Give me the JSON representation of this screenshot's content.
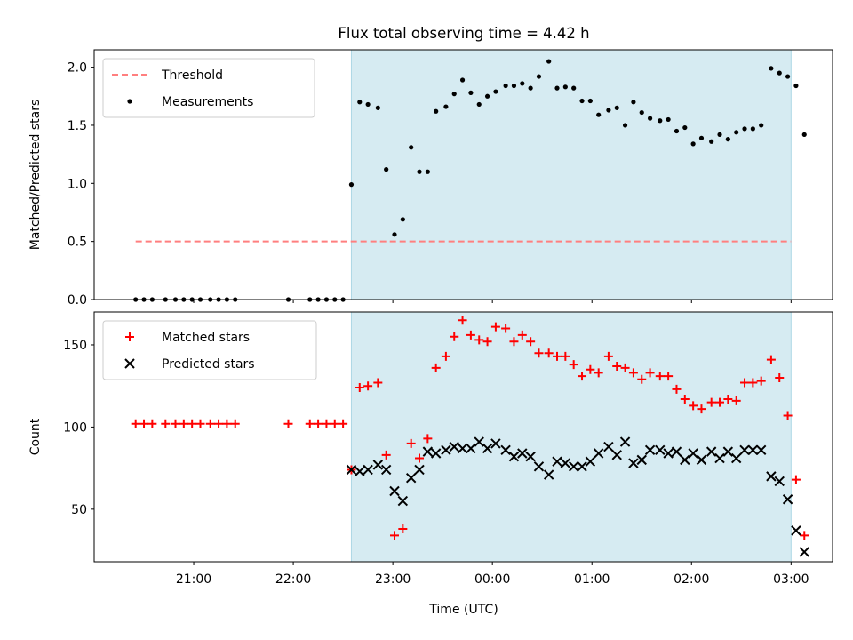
{
  "title": "Flux total observing time = 4.42 h",
  "xlabel": "Time (UTC)",
  "x_ticks": [
    "21:00",
    "22:00",
    "23:00",
    "00:00",
    "01:00",
    "02:00",
    "03:00"
  ],
  "colors": {
    "threshold": "#ff7f7f",
    "measurements": "#000000",
    "matched": "#ff0000",
    "predicted": "#000000",
    "shade": "#add8e6"
  },
  "chart_data": [
    {
      "type": "scatter",
      "ylabel": "Matched/Predicted stars",
      "ylim": [
        0,
        2.15
      ],
      "y_ticks": [
        "0.0",
        "0.5",
        "1.0",
        "1.5",
        "2.0"
      ],
      "legend_position": "top-left",
      "grid": false,
      "shaded_interval": [
        "22:35",
        "03:00"
      ],
      "series": [
        {
          "name": "Threshold",
          "style": "dashed-line",
          "x": [
            "20:25",
            "03:00"
          ],
          "values": [
            0.5,
            0.5
          ]
        },
        {
          "name": "Measurements",
          "style": "dot",
          "points": [
            [
              "20:25",
              0
            ],
            [
              "20:30",
              0
            ],
            [
              "20:35",
              0
            ],
            [
              "20:43",
              0
            ],
            [
              "20:49",
              0
            ],
            [
              "20:54",
              0
            ],
            [
              "20:59",
              0
            ],
            [
              "21:04",
              0
            ],
            [
              "21:10",
              0
            ],
            [
              "21:15",
              0
            ],
            [
              "21:20",
              0
            ],
            [
              "21:25",
              0
            ],
            [
              "21:57",
              0
            ],
            [
              "22:10",
              0
            ],
            [
              "22:15",
              0
            ],
            [
              "22:20",
              0
            ],
            [
              "22:25",
              0
            ],
            [
              "22:30",
              0
            ],
            [
              "22:35",
              0.99
            ],
            [
              "22:40",
              1.7
            ],
            [
              "22:45",
              1.68
            ],
            [
              "22:51",
              1.65
            ],
            [
              "22:56",
              1.12
            ],
            [
              "23:01",
              0.56
            ],
            [
              "23:06",
              0.69
            ],
            [
              "23:11",
              1.31
            ],
            [
              "23:16",
              1.1
            ],
            [
              "23:21",
              1.1
            ],
            [
              "23:26",
              1.62
            ],
            [
              "23:32",
              1.66
            ],
            [
              "23:37",
              1.77
            ],
            [
              "23:42",
              1.89
            ],
            [
              "23:47",
              1.78
            ],
            [
              "23:52",
              1.68
            ],
            [
              "23:57",
              1.75
            ],
            [
              "00:02",
              1.79
            ],
            [
              "00:08",
              1.84
            ],
            [
              "00:13",
              1.84
            ],
            [
              "00:18",
              1.86
            ],
            [
              "00:23",
              1.82
            ],
            [
              "00:28",
              1.92
            ],
            [
              "00:34",
              2.05
            ],
            [
              "00:39",
              1.82
            ],
            [
              "00:44",
              1.83
            ],
            [
              "00:49",
              1.82
            ],
            [
              "00:54",
              1.71
            ],
            [
              "00:59",
              1.71
            ],
            [
              "01:04",
              1.59
            ],
            [
              "01:10",
              1.63
            ],
            [
              "01:15",
              1.65
            ],
            [
              "01:20",
              1.5
            ],
            [
              "01:25",
              1.7
            ],
            [
              "01:30",
              1.61
            ],
            [
              "01:35",
              1.56
            ],
            [
              "01:41",
              1.54
            ],
            [
              "01:46",
              1.55
            ],
            [
              "01:51",
              1.45
            ],
            [
              "01:56",
              1.48
            ],
            [
              "02:01",
              1.34
            ],
            [
              "02:06",
              1.39
            ],
            [
              "02:12",
              1.36
            ],
            [
              "02:17",
              1.42
            ],
            [
              "02:22",
              1.38
            ],
            [
              "02:27",
              1.44
            ],
            [
              "02:32",
              1.47
            ],
            [
              "02:37",
              1.47
            ],
            [
              "02:42",
              1.5
            ],
            [
              "02:48",
              1.99
            ],
            [
              "02:53",
              1.95
            ],
            [
              "02:58",
              1.92
            ],
            [
              "03:03",
              1.84
            ],
            [
              "03:08",
              1.42
            ]
          ]
        }
      ]
    },
    {
      "type": "scatter",
      "ylabel": "Count",
      "ylim": [
        18,
        170
      ],
      "y_ticks": [
        "50",
        "100",
        "150"
      ],
      "legend_position": "top-left",
      "grid": false,
      "shaded_interval": [
        "22:35",
        "03:00"
      ],
      "series": [
        {
          "name": "Matched stars",
          "marker": "plus",
          "points": [
            [
              "20:25",
              102
            ],
            [
              "20:30",
              102
            ],
            [
              "20:35",
              102
            ],
            [
              "20:43",
              102
            ],
            [
              "20:49",
              102
            ],
            [
              "20:54",
              102
            ],
            [
              "20:59",
              102
            ],
            [
              "21:04",
              102
            ],
            [
              "21:10",
              102
            ],
            [
              "21:15",
              102
            ],
            [
              "21:20",
              102
            ],
            [
              "21:25",
              102
            ],
            [
              "21:57",
              102
            ],
            [
              "22:10",
              102
            ],
            [
              "22:15",
              102
            ],
            [
              "22:20",
              102
            ],
            [
              "22:25",
              102
            ],
            [
              "22:30",
              102
            ],
            [
              "22:35",
              74
            ],
            [
              "22:40",
              124
            ],
            [
              "22:45",
              125
            ],
            [
              "22:51",
              127
            ],
            [
              "22:56",
              83
            ],
            [
              "23:01",
              34
            ],
            [
              "23:06",
              38
            ],
            [
              "23:11",
              90
            ],
            [
              "23:16",
              81
            ],
            [
              "23:21",
              93
            ],
            [
              "23:26",
              136
            ],
            [
              "23:32",
              143
            ],
            [
              "23:37",
              155
            ],
            [
              "23:42",
              165
            ],
            [
              "23:47",
              156
            ],
            [
              "23:52",
              153
            ],
            [
              "23:57",
              152
            ],
            [
              "00:02",
              161
            ],
            [
              "00:08",
              160
            ],
            [
              "00:13",
              152
            ],
            [
              "00:18",
              156
            ],
            [
              "00:23",
              152
            ],
            [
              "00:28",
              145
            ],
            [
              "00:34",
              145
            ],
            [
              "00:39",
              143
            ],
            [
              "00:44",
              143
            ],
            [
              "00:49",
              138
            ],
            [
              "00:54",
              131
            ],
            [
              "00:59",
              135
            ],
            [
              "01:04",
              133
            ],
            [
              "01:10",
              143
            ],
            [
              "01:15",
              137
            ],
            [
              "01:20",
              136
            ],
            [
              "01:25",
              133
            ],
            [
              "01:30",
              129
            ],
            [
              "01:35",
              133
            ],
            [
              "01:41",
              131
            ],
            [
              "01:46",
              131
            ],
            [
              "01:51",
              123
            ],
            [
              "01:56",
              117
            ],
            [
              "02:01",
              113
            ],
            [
              "02:06",
              111
            ],
            [
              "02:12",
              115
            ],
            [
              "02:17",
              115
            ],
            [
              "02:22",
              117
            ],
            [
              "02:27",
              116
            ],
            [
              "02:32",
              127
            ],
            [
              "02:37",
              127
            ],
            [
              "02:42",
              128
            ],
            [
              "02:48",
              141
            ],
            [
              "02:53",
              130
            ],
            [
              "02:58",
              107
            ],
            [
              "03:03",
              68
            ],
            [
              "03:08",
              34
            ]
          ]
        },
        {
          "name": "Predicted stars",
          "marker": "x",
          "points": [
            [
              "22:35",
              74
            ],
            [
              "22:40",
              73
            ],
            [
              "22:45",
              74
            ],
            [
              "22:51",
              77
            ],
            [
              "22:56",
              74
            ],
            [
              "23:01",
              61
            ],
            [
              "23:06",
              55
            ],
            [
              "23:11",
              69
            ],
            [
              "23:16",
              74
            ],
            [
              "23:21",
              85
            ],
            [
              "23:26",
              84
            ],
            [
              "23:32",
              86
            ],
            [
              "23:37",
              88
            ],
            [
              "23:42",
              87
            ],
            [
              "23:47",
              87
            ],
            [
              "23:52",
              91
            ],
            [
              "23:57",
              87
            ],
            [
              "00:02",
              90
            ],
            [
              "00:08",
              86
            ],
            [
              "00:13",
              82
            ],
            [
              "00:18",
              84
            ],
            [
              "00:23",
              82
            ],
            [
              "00:28",
              76
            ],
            [
              "00:34",
              71
            ],
            [
              "00:39",
              79
            ],
            [
              "00:44",
              78
            ],
            [
              "00:49",
              76
            ],
            [
              "00:54",
              76
            ],
            [
              "00:59",
              79
            ],
            [
              "01:04",
              84
            ],
            [
              "01:10",
              88
            ],
            [
              "01:15",
              83
            ],
            [
              "01:20",
              91
            ],
            [
              "01:25",
              78
            ],
            [
              "01:30",
              80
            ],
            [
              "01:35",
              86
            ],
            [
              "01:41",
              86
            ],
            [
              "01:46",
              84
            ],
            [
              "01:51",
              85
            ],
            [
              "01:56",
              80
            ],
            [
              "02:01",
              84
            ],
            [
              "02:06",
              80
            ],
            [
              "02:12",
              85
            ],
            [
              "02:17",
              81
            ],
            [
              "02:22",
              85
            ],
            [
              "02:27",
              81
            ],
            [
              "02:32",
              86
            ],
            [
              "02:37",
              86
            ],
            [
              "02:42",
              86
            ],
            [
              "02:48",
              70
            ],
            [
              "02:53",
              67
            ],
            [
              "02:58",
              56
            ],
            [
              "03:03",
              37
            ],
            [
              "03:08",
              24
            ]
          ]
        }
      ]
    }
  ]
}
